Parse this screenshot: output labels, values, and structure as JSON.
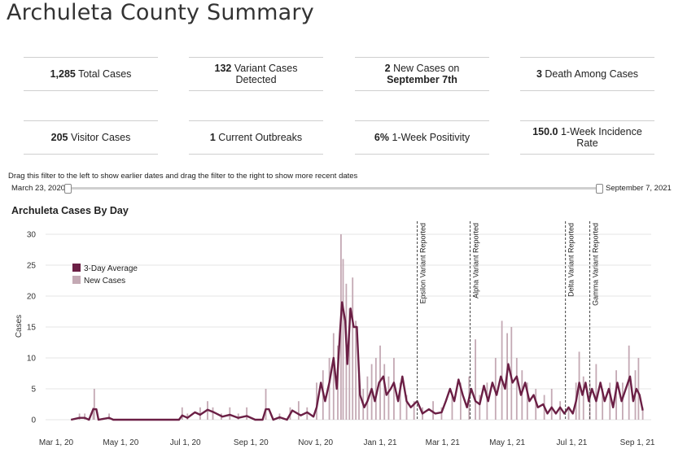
{
  "page": {
    "title": "Archuleta County Summary"
  },
  "cards": [
    {
      "value": "1,285",
      "label": " Total Cases"
    },
    {
      "value": "132",
      "label": " Variant Cases Detected"
    },
    {
      "value": "2",
      "label": " New Cases on ",
      "value2": "September 7th"
    },
    {
      "value": "3",
      "label": " Death Among Cases"
    },
    {
      "value": "205",
      "label": " Visitor Cases"
    },
    {
      "value": "1",
      "label": " Current Outbreaks"
    },
    {
      "value": "6%",
      "label": " 1-Week Positivity"
    },
    {
      "value": "150.0",
      "label": " 1-Week Incidence Rate"
    }
  ],
  "filter": {
    "instruction": "Drag this filter to the left to show earlier dates and drag the filter to the right to show more recent dates",
    "start_label": "March 23, 2020",
    "end_label": "September 7, 2021"
  },
  "chart_data": {
    "type": "bar",
    "title": "Archuleta Cases By Day",
    "ylabel": "Cases",
    "xlabel": "",
    "ylim": [
      0,
      30
    ],
    "yticks": [
      0,
      5,
      10,
      15,
      20,
      25,
      30
    ],
    "xlim": [
      "2020-02-20",
      "2021-09-14"
    ],
    "xticks": [
      {
        "date": "2020-03-01",
        "label": "Mar 1, 20"
      },
      {
        "date": "2020-05-01",
        "label": "May 1, 20"
      },
      {
        "date": "2020-07-01",
        "label": "Jul 1, 20"
      },
      {
        "date": "2020-09-01",
        "label": "Sep 1, 20"
      },
      {
        "date": "2020-11-01",
        "label": "Nov 1, 20"
      },
      {
        "date": "2021-01-01",
        "label": "Jan 1, 21"
      },
      {
        "date": "2021-03-01",
        "label": "Mar 1, 21"
      },
      {
        "date": "2021-05-01",
        "label": "May 1, 21"
      },
      {
        "date": "2021-07-01",
        "label": "Jul 1, 21"
      },
      {
        "date": "2021-09-01",
        "label": "Sep 1, 21"
      }
    ],
    "grid": true,
    "legend_position": "top-left",
    "colors": {
      "average": "#6b1f45",
      "new_cases": "#c4a9b4",
      "annotation": "#444444"
    },
    "series": [
      {
        "name": "New Cases",
        "kind": "bar",
        "points": [
          [
            "2020-03-23",
            1
          ],
          [
            "2020-03-28",
            1
          ],
          [
            "2020-04-05",
            2
          ],
          [
            "2020-04-06",
            5
          ],
          [
            "2020-04-20",
            1
          ],
          [
            "2020-06-28",
            2
          ],
          [
            "2020-07-03",
            1
          ],
          [
            "2020-07-15",
            2
          ],
          [
            "2020-07-22",
            3
          ],
          [
            "2020-07-27",
            2
          ],
          [
            "2020-08-04",
            1
          ],
          [
            "2020-08-12",
            2
          ],
          [
            "2020-08-20",
            1
          ],
          [
            "2020-08-28",
            2
          ],
          [
            "2020-09-15",
            5
          ],
          [
            "2020-09-28",
            1
          ],
          [
            "2020-10-08",
            2
          ],
          [
            "2020-10-16",
            3
          ],
          [
            "2020-10-24",
            2
          ],
          [
            "2020-11-02",
            6
          ],
          [
            "2020-11-08",
            8
          ],
          [
            "2020-11-14",
            10
          ],
          [
            "2020-11-18",
            14
          ],
          [
            "2020-11-22",
            12
          ],
          [
            "2020-11-25",
            30
          ],
          [
            "2020-11-27",
            26
          ],
          [
            "2020-11-30",
            22
          ],
          [
            "2020-12-03",
            18
          ],
          [
            "2020-12-06",
            23
          ],
          [
            "2020-12-09",
            16
          ],
          [
            "2020-12-12",
            8
          ],
          [
            "2020-12-16",
            5
          ],
          [
            "2020-12-20",
            7
          ],
          [
            "2020-12-24",
            9
          ],
          [
            "2020-12-28",
            10
          ],
          [
            "2021-01-01",
            12
          ],
          [
            "2021-01-05",
            9
          ],
          [
            "2021-01-09",
            7
          ],
          [
            "2021-01-14",
            10
          ],
          [
            "2021-01-20",
            6
          ],
          [
            "2021-01-26",
            4
          ],
          [
            "2021-02-02",
            3
          ],
          [
            "2021-02-10",
            2
          ],
          [
            "2021-02-20",
            3
          ],
          [
            "2021-02-28",
            2
          ],
          [
            "2021-03-10",
            4
          ],
          [
            "2021-03-18",
            6
          ],
          [
            "2021-03-26",
            7
          ],
          [
            "2021-04-01",
            13
          ],
          [
            "2021-04-05",
            4
          ],
          [
            "2021-04-12",
            6
          ],
          [
            "2021-04-20",
            10
          ],
          [
            "2021-04-26",
            16
          ],
          [
            "2021-05-01",
            14
          ],
          [
            "2021-05-05",
            15
          ],
          [
            "2021-05-10",
            10
          ],
          [
            "2021-05-15",
            8
          ],
          [
            "2021-05-20",
            6
          ],
          [
            "2021-05-28",
            5
          ],
          [
            "2021-06-05",
            4
          ],
          [
            "2021-06-12",
            5
          ],
          [
            "2021-06-20",
            3
          ],
          [
            "2021-06-28",
            2
          ],
          [
            "2021-07-05",
            6
          ],
          [
            "2021-07-08",
            11
          ],
          [
            "2021-07-12",
            7
          ],
          [
            "2021-07-18",
            6
          ],
          [
            "2021-07-24",
            9
          ],
          [
            "2021-07-30",
            5
          ],
          [
            "2021-08-06",
            6
          ],
          [
            "2021-08-12",
            8
          ],
          [
            "2021-08-18",
            6
          ],
          [
            "2021-08-24",
            12
          ],
          [
            "2021-08-30",
            8
          ],
          [
            "2021-09-02",
            10
          ],
          [
            "2021-09-06",
            2
          ]
        ]
      },
      {
        "name": "3-Day Average",
        "kind": "line",
        "points": [
          [
            "2020-03-15",
            0
          ],
          [
            "2020-03-23",
            0.3
          ],
          [
            "2020-03-28",
            0.3
          ],
          [
            "2020-04-01",
            0
          ],
          [
            "2020-04-05",
            1.7
          ],
          [
            "2020-04-08",
            1.7
          ],
          [
            "2020-04-10",
            0
          ],
          [
            "2020-04-20",
            0.3
          ],
          [
            "2020-04-24",
            0
          ],
          [
            "2020-06-25",
            0
          ],
          [
            "2020-06-28",
            0.7
          ],
          [
            "2020-07-03",
            0.3
          ],
          [
            "2020-07-10",
            1.2
          ],
          [
            "2020-07-15",
            0.8
          ],
          [
            "2020-07-22",
            1.6
          ],
          [
            "2020-07-28",
            1.2
          ],
          [
            "2020-08-05",
            0.5
          ],
          [
            "2020-08-12",
            0.8
          ],
          [
            "2020-08-20",
            0.3
          ],
          [
            "2020-08-28",
            0.6
          ],
          [
            "2020-09-05",
            0
          ],
          [
            "2020-09-12",
            0
          ],
          [
            "2020-09-15",
            1.7
          ],
          [
            "2020-09-18",
            1.7
          ],
          [
            "2020-09-22",
            0
          ],
          [
            "2020-09-28",
            0.4
          ],
          [
            "2020-10-05",
            0
          ],
          [
            "2020-10-10",
            1.5
          ],
          [
            "2020-10-18",
            0.7
          ],
          [
            "2020-10-24",
            1.2
          ],
          [
            "2020-10-30",
            0.5
          ],
          [
            "2020-11-02",
            2
          ],
          [
            "2020-11-06",
            6
          ],
          [
            "2020-11-10",
            3
          ],
          [
            "2020-11-14",
            6
          ],
          [
            "2020-11-18",
            10
          ],
          [
            "2020-11-21",
            5
          ],
          [
            "2020-11-24",
            14
          ],
          [
            "2020-11-26",
            19
          ],
          [
            "2020-11-29",
            16
          ],
          [
            "2020-12-01",
            9
          ],
          [
            "2020-12-04",
            18
          ],
          [
            "2020-12-07",
            15
          ],
          [
            "2020-12-10",
            15
          ],
          [
            "2020-12-13",
            4
          ],
          [
            "2020-12-17",
            2
          ],
          [
            "2020-12-20",
            3
          ],
          [
            "2020-12-24",
            5
          ],
          [
            "2020-12-27",
            3
          ],
          [
            "2020-12-31",
            6
          ],
          [
            "2021-01-04",
            7
          ],
          [
            "2021-01-07",
            4
          ],
          [
            "2021-01-11",
            5
          ],
          [
            "2021-01-14",
            6
          ],
          [
            "2021-01-18",
            3
          ],
          [
            "2021-01-22",
            7
          ],
          [
            "2021-01-26",
            3
          ],
          [
            "2021-01-30",
            2
          ],
          [
            "2021-02-05",
            3
          ],
          [
            "2021-02-10",
            1
          ],
          [
            "2021-02-16",
            1.7
          ],
          [
            "2021-02-22",
            1
          ],
          [
            "2021-02-28",
            1.2
          ],
          [
            "2021-03-04",
            3
          ],
          [
            "2021-03-08",
            5
          ],
          [
            "2021-03-12",
            3
          ],
          [
            "2021-03-16",
            6.5
          ],
          [
            "2021-03-20",
            4
          ],
          [
            "2021-03-24",
            2
          ],
          [
            "2021-03-28",
            5
          ],
          [
            "2021-04-01",
            3
          ],
          [
            "2021-04-05",
            2.5
          ],
          [
            "2021-04-09",
            5.5
          ],
          [
            "2021-04-13",
            3
          ],
          [
            "2021-04-17",
            6
          ],
          [
            "2021-04-21",
            4
          ],
          [
            "2021-04-25",
            7
          ],
          [
            "2021-04-29",
            5
          ],
          [
            "2021-05-02",
            9
          ],
          [
            "2021-05-06",
            6
          ],
          [
            "2021-05-10",
            7
          ],
          [
            "2021-05-14",
            4
          ],
          [
            "2021-05-18",
            6
          ],
          [
            "2021-05-22",
            3
          ],
          [
            "2021-05-26",
            4
          ],
          [
            "2021-05-30",
            2
          ],
          [
            "2021-06-04",
            2.5
          ],
          [
            "2021-06-08",
            1
          ],
          [
            "2021-06-12",
            2
          ],
          [
            "2021-06-16",
            1
          ],
          [
            "2021-06-20",
            2
          ],
          [
            "2021-06-24",
            1
          ],
          [
            "2021-06-28",
            2
          ],
          [
            "2021-07-02",
            1
          ],
          [
            "2021-07-05",
            3
          ],
          [
            "2021-07-08",
            6
          ],
          [
            "2021-07-11",
            4
          ],
          [
            "2021-07-14",
            6
          ],
          [
            "2021-07-17",
            3
          ],
          [
            "2021-07-20",
            5
          ],
          [
            "2021-07-24",
            3
          ],
          [
            "2021-07-28",
            6
          ],
          [
            "2021-08-01",
            3
          ],
          [
            "2021-08-05",
            5
          ],
          [
            "2021-08-09",
            2
          ],
          [
            "2021-08-13",
            6
          ],
          [
            "2021-08-17",
            3
          ],
          [
            "2021-08-21",
            5
          ],
          [
            "2021-08-25",
            7
          ],
          [
            "2021-08-28",
            3
          ],
          [
            "2021-08-31",
            5
          ],
          [
            "2021-09-03",
            4
          ],
          [
            "2021-09-06",
            1.5
          ]
        ]
      }
    ],
    "annotations": [
      {
        "date": "2021-02-05",
        "label": "Epsilon Variant Reported"
      },
      {
        "date": "2021-03-27",
        "label": "Alpha Variant Reported"
      },
      {
        "date": "2021-06-25",
        "label": "Delta Variant Reported"
      },
      {
        "date": "2021-07-18",
        "label": "Gamma Variant Reported"
      }
    ]
  }
}
